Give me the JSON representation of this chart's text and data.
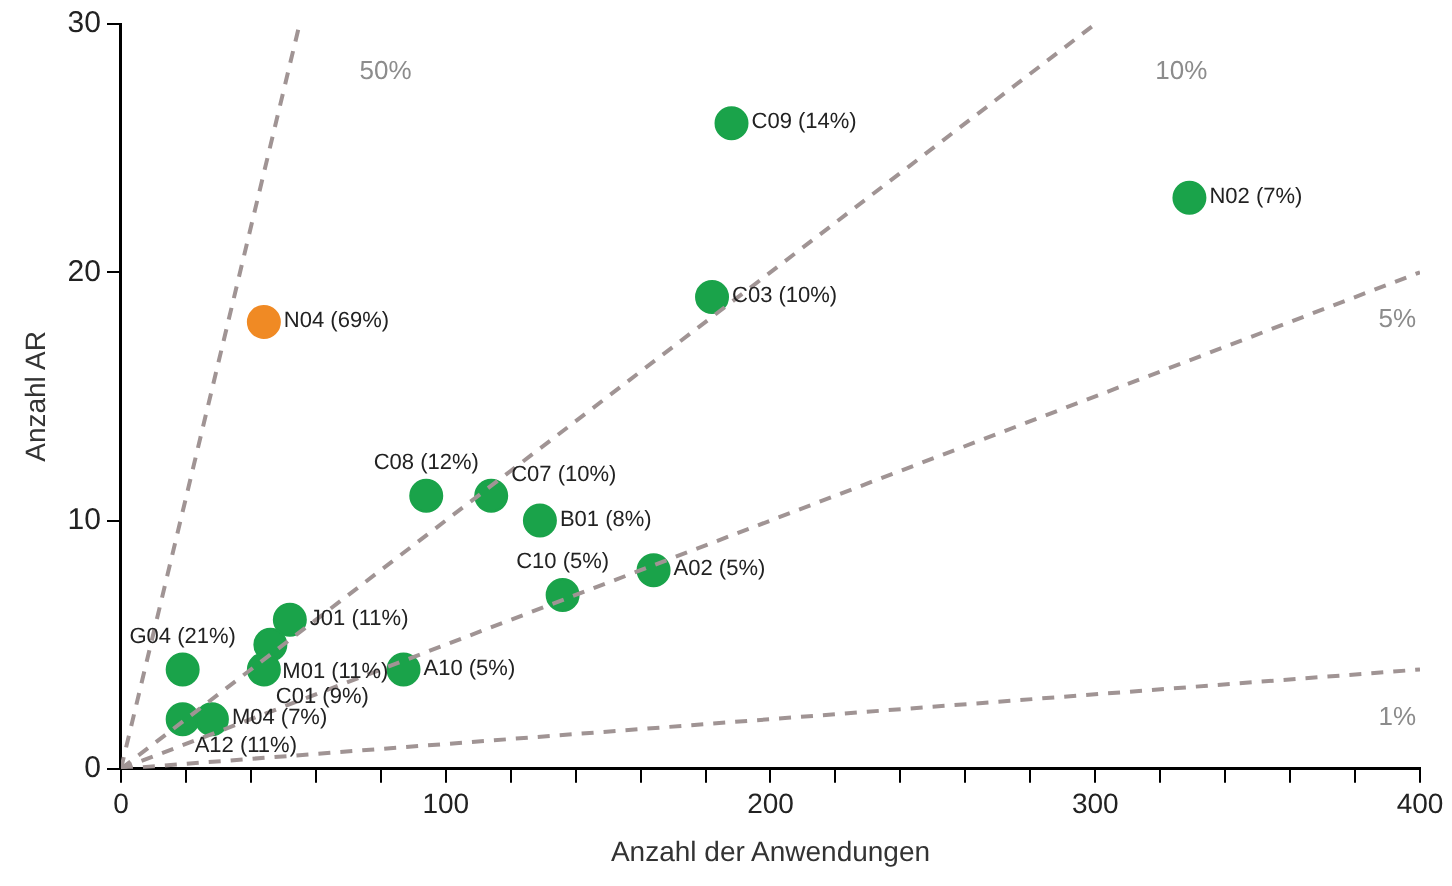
{
  "chart_data": {
    "type": "scatter",
    "xlabel": "Anzahl der Anwendungen",
    "ylabel": "Anzahl AR",
    "xlim": [
      0,
      400
    ],
    "ylim": [
      0,
      30
    ],
    "xticks": [
      0,
      {
        "value": 20,
        "label": null
      },
      {
        "value": 40,
        "label": null
      },
      {
        "value": 60,
        "label": null
      },
      {
        "value": 80,
        "label": null
      },
      100,
      {
        "value": 120,
        "label": null
      },
      {
        "value": 140,
        "label": null
      },
      {
        "value": 160,
        "label": null
      },
      {
        "value": 180,
        "label": null
      },
      200,
      {
        "value": 220,
        "label": null
      },
      {
        "value": 240,
        "label": null
      },
      {
        "value": 260,
        "label": null
      },
      {
        "value": 280,
        "label": null
      },
      300,
      {
        "value": 320,
        "label": null
      },
      {
        "value": 340,
        "label": null
      },
      {
        "value": 360,
        "label": null
      },
      {
        "value": 380,
        "label": null
      },
      400
    ],
    "yticks": [
      0,
      10,
      20,
      30
    ],
    "grid": false,
    "legend": false,
    "marker": "circle",
    "series": [
      {
        "type": "line",
        "name": "50%",
        "color": "#a09494",
        "line_style": "dashed",
        "marker": "none",
        "x": [
          0,
          55
        ],
        "values": [
          0,
          30
        ]
      },
      {
        "type": "line",
        "name": "10%",
        "color": "#a09494",
        "line_style": "dashed",
        "marker": "none",
        "x": [
          0,
          300
        ],
        "values": [
          0,
          30
        ]
      },
      {
        "type": "line",
        "name": "5%",
        "color": "#a09494",
        "line_style": "dashed",
        "marker": "none",
        "x": [
          0,
          400
        ],
        "values": [
          0,
          20
        ]
      },
      {
        "type": "line",
        "name": "1%",
        "color": "#a09494",
        "line_style": "dashed",
        "marker": "none",
        "x": [
          0,
          400
        ],
        "values": [
          0,
          4
        ]
      },
      {
        "x": [
          188,
          329,
          182,
          44,
          94,
          114,
          129,
          164,
          136,
          87,
          52,
          46,
          44,
          19,
          19,
          28
        ],
        "values": [
          26,
          23,
          19,
          18,
          11,
          11,
          10,
          8,
          7,
          4,
          6,
          5,
          4,
          4,
          2,
          2
        ],
        "colors": [
          "#1aa34a",
          "#1aa34a",
          "#1aa34a",
          "#f08a24",
          "#1aa34a",
          "#1aa34a",
          "#1aa34a",
          "#1aa34a",
          "#1aa34a",
          "#1aa34a",
          "#1aa34a",
          "#1aa34a",
          "#1aa34a",
          "#1aa34a",
          "#1aa34a",
          "#1aa34a"
        ]
      }
    ],
    "annotations": [
      {
        "text": "C09 (14%)",
        "x": 188,
        "y": 26
      },
      {
        "text": "N02 (7%)",
        "x": 329,
        "y": 23
      },
      {
        "text": "C03 (10%)",
        "x": 182,
        "y": 19
      },
      {
        "text": "N04 (69%)",
        "x": 44,
        "y": 18
      },
      {
        "text": "C08 (12%)",
        "x": 94,
        "y": 11
      },
      {
        "text": "C07 (10%)",
        "x": 114,
        "y": 11
      },
      {
        "text": "B01 (8%)",
        "x": 129,
        "y": 10
      },
      {
        "text": "A02 (5%)",
        "x": 164,
        "y": 8
      },
      {
        "text": "C10 (5%)",
        "x": 136,
        "y": 7
      },
      {
        "text": "A10 (5%)",
        "x": 87,
        "y": 4
      },
      {
        "text": "J01 (11%)",
        "x": 52,
        "y": 6
      },
      {
        "text": "M01 (11%)",
        "x": 46,
        "y": 5
      },
      {
        "text": "C01 (9%)",
        "x": 44,
        "y": 4
      },
      {
        "text": "G04 (21%)",
        "x": 19,
        "y": 4
      },
      {
        "text": "A12 (11%)",
        "x": 19,
        "y": 2
      },
      {
        "text": "M04 (7%)",
        "x": 28,
        "y": 2
      }
    ]
  }
}
